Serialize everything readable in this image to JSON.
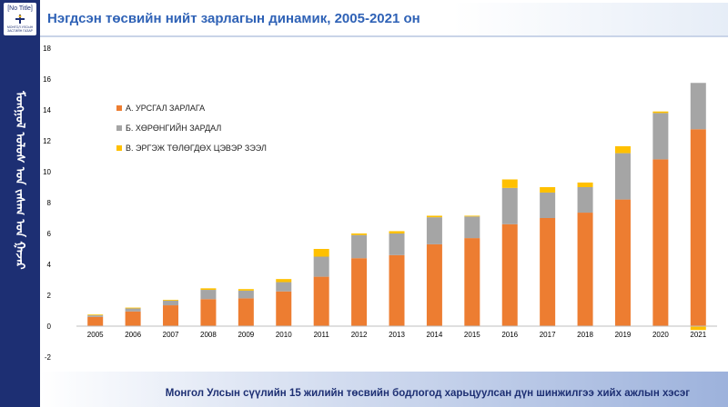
{
  "logo": {
    "label": "[No Title]",
    "sub": "МОНГОЛ УЛСЫН ЗАСГИЙН ГАЗАР"
  },
  "sidebar": {
    "vertical_text": "ᠮᠣᠩᠭᠣᠯ ᠤᠯᠤᠰ ᠤᠨ ᠵᠠᠰᠠᠭ ᠤᠨ ᠭᠠᠵᠠᠷ"
  },
  "header": {
    "title": "Нэгдсэн төсвийн нийт зарлагын динамик, 2005-2021 он"
  },
  "footer": {
    "text": "Монгол Улсын сүүлийн 15 жилийн төсвийн бодлогод харьцуулсан дүн шинжилгээ хийх ажлын хэсэг"
  },
  "colors": {
    "series_a": "#ed7d31",
    "series_b": "#a5a5a5",
    "series_c": "#ffc000",
    "brand": "#1d2f73",
    "title": "#2f62b6"
  },
  "chart_data": {
    "type": "bar",
    "stacked": true,
    "categories": [
      "2005",
      "2006",
      "2007",
      "2008",
      "2009",
      "2010",
      "2011",
      "2012",
      "2013",
      "2014",
      "2015",
      "2016",
      "2017",
      "2018",
      "2019",
      "2020",
      "2021"
    ],
    "series": [
      {
        "name": "А. УРСГАЛ ЗАРЛАГА",
        "values": [
          0.6,
          0.95,
          1.35,
          1.75,
          1.8,
          2.25,
          3.2,
          4.4,
          4.6,
          5.3,
          5.7,
          6.6,
          7.0,
          7.35,
          8.2,
          10.8,
          12.75
        ]
      },
      {
        "name": "Б. ХӨРӨНГИЙН ЗАРДАЛ",
        "values": [
          0.1,
          0.2,
          0.3,
          0.6,
          0.5,
          0.6,
          1.3,
          1.5,
          1.4,
          1.75,
          1.4,
          2.35,
          1.65,
          1.65,
          3.0,
          3.0,
          3.0
        ]
      },
      {
        "name": "В. ЭРГЭЖ ТӨЛӨГДӨХ ЦЭВЭР ЗЭЭЛ",
        "values": [
          0.05,
          0.05,
          0.05,
          0.1,
          0.1,
          0.2,
          0.5,
          0.1,
          0.15,
          0.1,
          0.05,
          0.55,
          0.35,
          0.3,
          0.45,
          0.1,
          -0.25
        ]
      }
    ],
    "yticks": [
      "-2",
      "0",
      "2",
      "4",
      "6",
      "8",
      "10",
      "12",
      "14",
      "16",
      "18"
    ],
    "ylim": [
      -2,
      18
    ],
    "legend_position": "top-left",
    "grid": false
  }
}
